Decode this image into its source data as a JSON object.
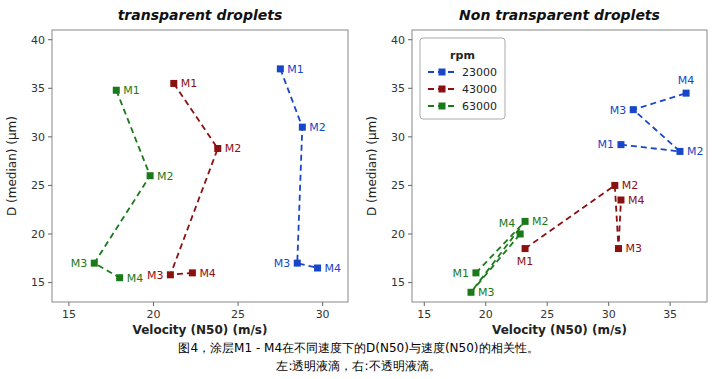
{
  "chart_data": [
    {
      "type": "line",
      "title": "transparent droplets",
      "x_label": "Velocity (N50) (m/s)",
      "y_label": "D (median) (µm)",
      "xlim": [
        14.0,
        31.5
      ],
      "ylim": [
        13.0,
        41.0
      ],
      "xticks": [
        15,
        20,
        25,
        30
      ],
      "yticks": [
        15,
        20,
        25,
        30,
        35,
        40
      ],
      "grid": false,
      "legend": false,
      "marker": "square",
      "line_style": "dashed",
      "series": [
        {
          "name": "23000",
          "color": "#1846c8",
          "x": [
            27.5,
            28.8,
            28.5,
            29.7
          ],
          "values": [
            37.0,
            31.0,
            17.0,
            16.5
          ],
          "labels": [
            "M1",
            "M2",
            "M3",
            "M4"
          ]
        },
        {
          "name": "43000",
          "color": "#8b1010",
          "x": [
            21.2,
            23.8,
            21.0,
            22.3
          ],
          "values": [
            35.5,
            28.8,
            15.8,
            16.0
          ],
          "labels": [
            "M1",
            "M2",
            "M3",
            "M4"
          ]
        },
        {
          "name": "63000",
          "color": "#1a7a1a",
          "x": [
            17.8,
            19.8,
            16.5,
            18.0
          ],
          "values": [
            34.8,
            26.0,
            17.0,
            15.5
          ],
          "labels": [
            "M1",
            "M2",
            "M3",
            "M4"
          ]
        }
      ]
    },
    {
      "type": "line",
      "title": "Non transparent droplets",
      "x_label": "Velocity (N50) (m/s)",
      "y_label": "D (median) (µm)",
      "xlim": [
        14.0,
        38.0
      ],
      "ylim": [
        13.0,
        41.0
      ],
      "xticks": [
        15,
        20,
        25,
        30,
        35
      ],
      "yticks": [
        15,
        20,
        25,
        30,
        35,
        40
      ],
      "grid": false,
      "legend": "upper left",
      "legend_title": "rpm",
      "marker": "square",
      "line_style": "dashed",
      "series": [
        {
          "name": "23000",
          "color": "#1846c8",
          "x": [
            31.0,
            35.8,
            32.0,
            36.3
          ],
          "values": [
            29.2,
            28.5,
            32.8,
            34.5
          ],
          "labels": [
            "M1",
            "M2",
            "M3",
            "M4"
          ]
        },
        {
          "name": "43000",
          "color": "#8b1010",
          "x": [
            23.2,
            30.5,
            30.8,
            31.0
          ],
          "values": [
            18.5,
            25.0,
            18.5,
            23.5
          ],
          "labels": [
            "M1",
            "M2",
            "M3",
            "M4"
          ]
        },
        {
          "name": "63000",
          "color": "#1a7a1a",
          "x": [
            19.2,
            23.2,
            18.8,
            22.8
          ],
          "values": [
            16.0,
            21.3,
            14.0,
            20.0
          ],
          "labels": [
            "M1",
            "M2",
            "M3",
            "M4"
          ]
        }
      ]
    }
  ],
  "annotations": [
    "图4，涂层M1 - M4在不同速度下的D(N50)与速度(N50)的相关性。",
    "左:透明液滴，右:不透明液滴。"
  ]
}
